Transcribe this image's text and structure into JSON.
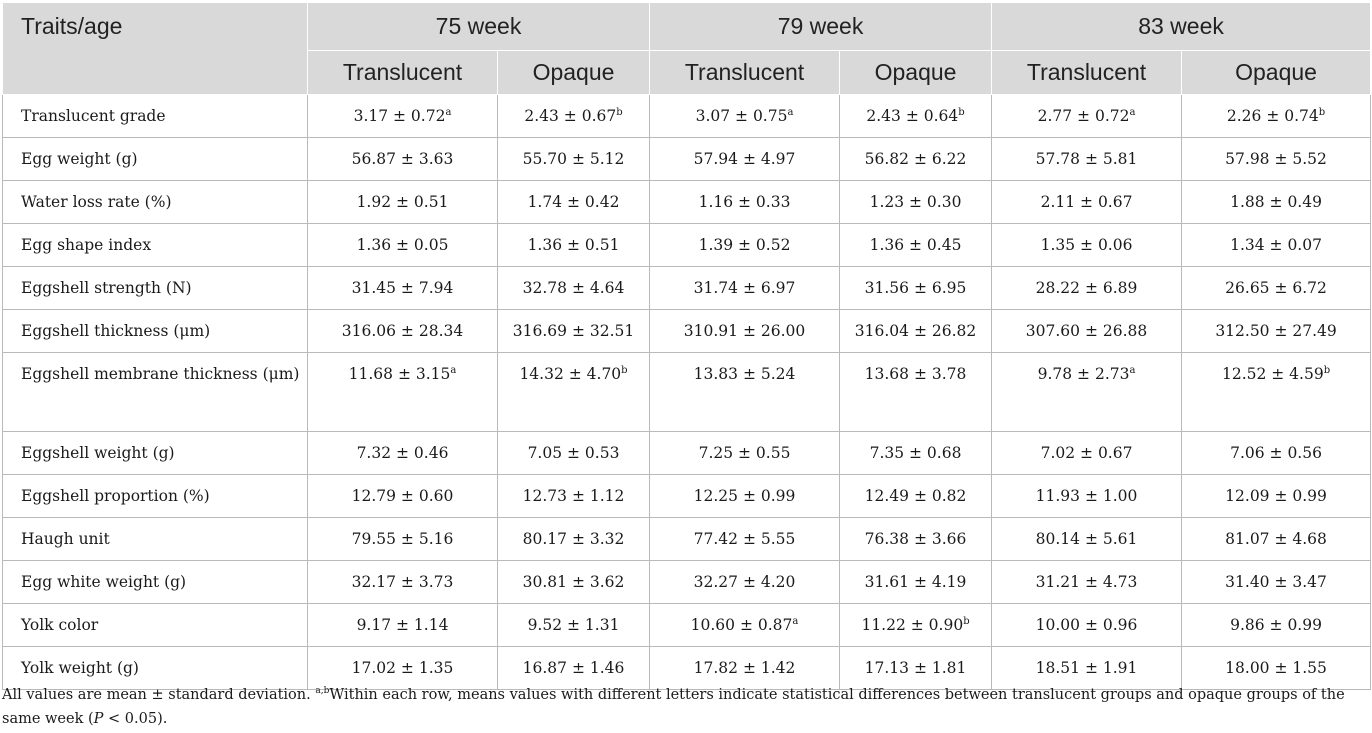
{
  "table": {
    "corner_label": "Traits/age",
    "weeks": [
      "75 week",
      "79 week",
      "83 week"
    ],
    "subheaders": [
      "Translucent",
      "Opaque",
      "Translucent",
      "Opaque",
      "Translucent",
      "Opaque"
    ],
    "rows": [
      {
        "label": "Translucent grade",
        "cells": [
          {
            "v": "3.17 ± 0.72",
            "s": "a"
          },
          {
            "v": "2.43 ± 0.67",
            "s": "b"
          },
          {
            "v": "3.07 ± 0.75",
            "s": "a"
          },
          {
            "v": "2.43 ± 0.64",
            "s": "b"
          },
          {
            "v": "2.77 ± 0.72",
            "s": "a"
          },
          {
            "v": "2.26 ± 0.74",
            "s": "b"
          }
        ]
      },
      {
        "label": "Egg weight (g)",
        "cells": [
          {
            "v": "56.87 ± 3.63",
            "s": ""
          },
          {
            "v": "55.70 ± 5.12",
            "s": ""
          },
          {
            "v": "57.94 ± 4.97",
            "s": ""
          },
          {
            "v": "56.82 ± 6.22",
            "s": ""
          },
          {
            "v": "57.78 ± 5.81",
            "s": ""
          },
          {
            "v": "57.98 ± 5.52",
            "s": ""
          }
        ]
      },
      {
        "label": "Water loss rate (%)",
        "cells": [
          {
            "v": "1.92 ± 0.51",
            "s": ""
          },
          {
            "v": "1.74 ± 0.42",
            "s": ""
          },
          {
            "v": "1.16 ± 0.33",
            "s": ""
          },
          {
            "v": "1.23 ± 0.30",
            "s": ""
          },
          {
            "v": "2.11 ± 0.67",
            "s": ""
          },
          {
            "v": "1.88 ± 0.49",
            "s": ""
          }
        ]
      },
      {
        "label": "Egg shape index",
        "cells": [
          {
            "v": "1.36 ± 0.05",
            "s": ""
          },
          {
            "v": "1.36 ± 0.51",
            "s": ""
          },
          {
            "v": "1.39 ± 0.52",
            "s": ""
          },
          {
            "v": "1.36 ± 0.45",
            "s": ""
          },
          {
            "v": "1.35 ± 0.06",
            "s": ""
          },
          {
            "v": "1.34 ± 0.07",
            "s": ""
          }
        ]
      },
      {
        "label": "Eggshell strength (N)",
        "cells": [
          {
            "v": "31.45 ± 7.94",
            "s": ""
          },
          {
            "v": "32.78 ± 4.64",
            "s": ""
          },
          {
            "v": "31.74 ± 6.97",
            "s": ""
          },
          {
            "v": "31.56 ± 6.95",
            "s": ""
          },
          {
            "v": "28.22 ± 6.89",
            "s": ""
          },
          {
            "v": "26.65 ± 6.72",
            "s": ""
          }
        ]
      },
      {
        "label": "Eggshell thickness (μm)",
        "cells": [
          {
            "v": "316.06 ± 28.34",
            "s": ""
          },
          {
            "v": "316.69 ± 32.51",
            "s": ""
          },
          {
            "v": "310.91 ± 26.00",
            "s": ""
          },
          {
            "v": "316.04 ± 26.82",
            "s": ""
          },
          {
            "v": "307.60 ± 26.88",
            "s": ""
          },
          {
            "v": "312.50 ± 27.49",
            "s": ""
          }
        ]
      },
      {
        "label": "Eggshell membrane thickness (μm)",
        "cells": [
          {
            "v": "11.68 ± 3.15",
            "s": "a"
          },
          {
            "v": "14.32 ± 4.70",
            "s": "b"
          },
          {
            "v": "13.83 ± 5.24",
            "s": ""
          },
          {
            "v": "13.68 ± 3.78",
            "s": ""
          },
          {
            "v": "9.78 ± 2.73",
            "s": "a"
          },
          {
            "v": "12.52 ± 4.59",
            "s": "b"
          }
        ]
      },
      {
        "label": "Eggshell weight (g)",
        "cells": [
          {
            "v": "7.32 ± 0.46",
            "s": ""
          },
          {
            "v": "7.05 ± 0.53",
            "s": ""
          },
          {
            "v": "7.25 ± 0.55",
            "s": ""
          },
          {
            "v": "7.35 ± 0.68",
            "s": ""
          },
          {
            "v": "7.02 ± 0.67",
            "s": ""
          },
          {
            "v": "7.06 ± 0.56",
            "s": ""
          }
        ]
      },
      {
        "label": "Eggshell proportion (%)",
        "cells": [
          {
            "v": "12.79 ± 0.60",
            "s": ""
          },
          {
            "v": "12.73 ± 1.12",
            "s": ""
          },
          {
            "v": "12.25 ± 0.99",
            "s": ""
          },
          {
            "v": "12.49 ± 0.82",
            "s": ""
          },
          {
            "v": "11.93 ± 1.00",
            "s": ""
          },
          {
            "v": "12.09 ± 0.99",
            "s": ""
          }
        ]
      },
      {
        "label": "Haugh unit",
        "cells": [
          {
            "v": "79.55 ± 5.16",
            "s": ""
          },
          {
            "v": "80.17 ± 3.32",
            "s": ""
          },
          {
            "v": "77.42 ± 5.55",
            "s": ""
          },
          {
            "v": "76.38 ± 3.66",
            "s": ""
          },
          {
            "v": "80.14 ± 5.61",
            "s": ""
          },
          {
            "v": "81.07 ± 4.68",
            "s": ""
          }
        ]
      },
      {
        "label": "Egg white weight (g)",
        "cells": [
          {
            "v": "32.17 ± 3.73",
            "s": ""
          },
          {
            "v": "30.81 ± 3.62",
            "s": ""
          },
          {
            "v": "32.27 ± 4.20",
            "s": ""
          },
          {
            "v": "31.61 ± 4.19",
            "s": ""
          },
          {
            "v": "31.21 ± 4.73",
            "s": ""
          },
          {
            "v": "31.40 ± 3.47",
            "s": ""
          }
        ]
      },
      {
        "label": "Yolk color",
        "cells": [
          {
            "v": "9.17 ± 1.14",
            "s": ""
          },
          {
            "v": "9.52 ± 1.31",
            "s": ""
          },
          {
            "v": "10.60 ± 0.87",
            "s": "a"
          },
          {
            "v": "11.22 ± 0.90",
            "s": "b"
          },
          {
            "v": "10.00 ± 0.96",
            "s": ""
          },
          {
            "v": "9.86 ± 0.99",
            "s": ""
          }
        ]
      },
      {
        "label": "Yolk weight (g)",
        "cells": [
          {
            "v": "17.02 ± 1.35",
            "s": ""
          },
          {
            "v": "16.87 ± 1.46",
            "s": ""
          },
          {
            "v": "17.82 ± 1.42",
            "s": ""
          },
          {
            "v": "17.13 ± 1.81",
            "s": ""
          },
          {
            "v": "18.51 ± 1.91",
            "s": ""
          },
          {
            "v": "18.00 ± 1.55",
            "s": ""
          }
        ]
      }
    ]
  },
  "footnote": {
    "lead": "All values are mean ± standard deviation. ",
    "superscript": "a,b",
    "body": "Within each row, means values with different letters indicate statistical differences between translucent groups and opaque groups of the same week (",
    "p_symbol": "P",
    "tail": " < 0.05)."
  },
  "colors": {
    "header_bg": "#d9d9d9",
    "grid_line": "#b9b9b9",
    "text": "#1a1a1a"
  }
}
